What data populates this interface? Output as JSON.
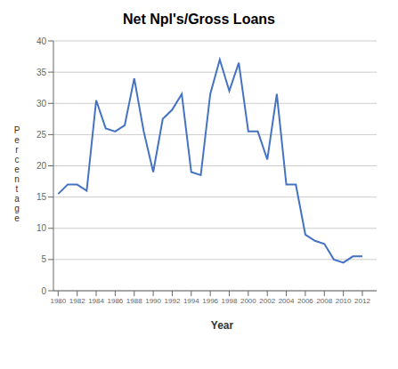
{
  "chart_data": {
    "type": "line",
    "title": "Net Npl's/Gross Loans",
    "xlabel": "Year",
    "ylabel": "P\ne\nr\nc\ne\nn\nt\na\ng\ne",
    "x": [
      1980,
      1981,
      1982,
      1983,
      1984,
      1985,
      1986,
      1987,
      1988,
      1989,
      1990,
      1991,
      1992,
      1993,
      1994,
      1995,
      1996,
      1997,
      1998,
      1999,
      2000,
      2001,
      2002,
      2003,
      2004,
      2005,
      2006,
      2007,
      2008,
      2009,
      2010,
      2011,
      2012
    ],
    "values": [
      15.5,
      17.0,
      17.0,
      16.0,
      30.5,
      26.0,
      25.5,
      26.5,
      34.0,
      25.5,
      19.0,
      27.5,
      29.0,
      31.5,
      19.0,
      18.5,
      31.5,
      37.0,
      32.0,
      36.5,
      25.5,
      25.5,
      21.0,
      31.5,
      17.0,
      17.0,
      9.0,
      8.0,
      7.5,
      5.0,
      4.5,
      5.5,
      5.5
    ],
    "color": "#4472C4",
    "xlim": [
      1979.5,
      2013.5
    ],
    "ylim": [
      0,
      40
    ],
    "xticks": [
      1980,
      1982,
      1984,
      1986,
      1988,
      1990,
      1992,
      1994,
      1996,
      1998,
      2000,
      2002,
      2004,
      2006,
      2008,
      2010,
      2012
    ],
    "yticks": [
      0,
      5,
      10,
      15,
      20,
      25,
      30,
      35,
      40
    ],
    "grid": true
  }
}
